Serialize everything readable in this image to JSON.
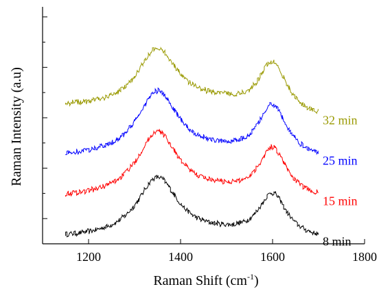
{
  "chart_data": {
    "type": "line",
    "title": "",
    "xlabel": "Raman Shift (cm",
    "xlabel_sup": "-1",
    "xlabel_close": ")",
    "ylabel": "Raman Intensity (a.u)",
    "xlim": [
      1100,
      1800
    ],
    "ylim": [
      0,
      4.7
    ],
    "x_ticks": [
      1200,
      1400,
      1600,
      1800
    ],
    "x_tick_labels": [
      "1200",
      "1400",
      "1600",
      "1800"
    ],
    "y_tick_labels_shown": false,
    "grid": false,
    "legend": "none",
    "peaks": {
      "D_band_position": 1350,
      "G_band_position": 1600
    },
    "series": [
      {
        "name": "8 min",
        "color": "#000000",
        "x_start": 1150,
        "x_end": 1700,
        "baseline": 0.1,
        "d_peak_height": 1.3,
        "valley_1480": 0.4,
        "g_peak_height": 0.95,
        "end_value": 0.05
      },
      {
        "name": "15 min",
        "color": "#ff0000",
        "x_start": 1150,
        "x_end": 1700,
        "baseline": 0.9,
        "d_peak_height": 2.2,
        "valley_1480": 1.25,
        "g_peak_height": 1.85,
        "end_value": 0.85
      },
      {
        "name": "25 min",
        "color": "#0000ff",
        "x_start": 1150,
        "x_end": 1700,
        "baseline": 1.7,
        "d_peak_height": 3.0,
        "valley_1480": 2.05,
        "g_peak_height": 2.7,
        "end_value": 1.65
      },
      {
        "name": "32 min",
        "color": "#999900",
        "x_start": 1150,
        "x_end": 1700,
        "baseline": 2.7,
        "d_peak_height": 3.85,
        "valley_1480": 3.0,
        "g_peak_height": 3.55,
        "end_value": 2.45
      }
    ]
  }
}
